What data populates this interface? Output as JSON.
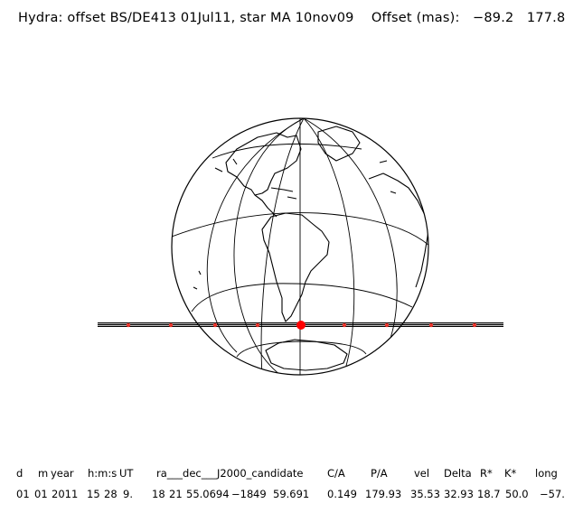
{
  "header": {
    "title": "Hydra: offset BS/DE413 01Jul11, star MA 10nov09",
    "offset_label": "Offset (mas):",
    "offset_x": "−89.2",
    "offset_y": "177.8"
  },
  "table": {
    "headers": [
      "d",
      "m",
      "year",
      "h:m:s",
      "UT",
      "ra___dec___J2000_candidate",
      "C/A",
      "P/A",
      "vel",
      "Delta",
      "R*",
      "K*",
      "long"
    ],
    "row": [
      "01",
      "01",
      "2011",
      "15",
      "28",
      "9.",
      "18",
      "21",
      "55.0694",
      "−18",
      "49",
      "59.691",
      "0.149",
      "179.93",
      "35.53",
      "32.93",
      "18.7",
      "50.0",
      "−57."
    ]
  },
  "colors": {
    "background": "#ffffff",
    "ink": "#000000",
    "track_dots": "#e8332a",
    "central_dot": "#ff0000"
  }
}
